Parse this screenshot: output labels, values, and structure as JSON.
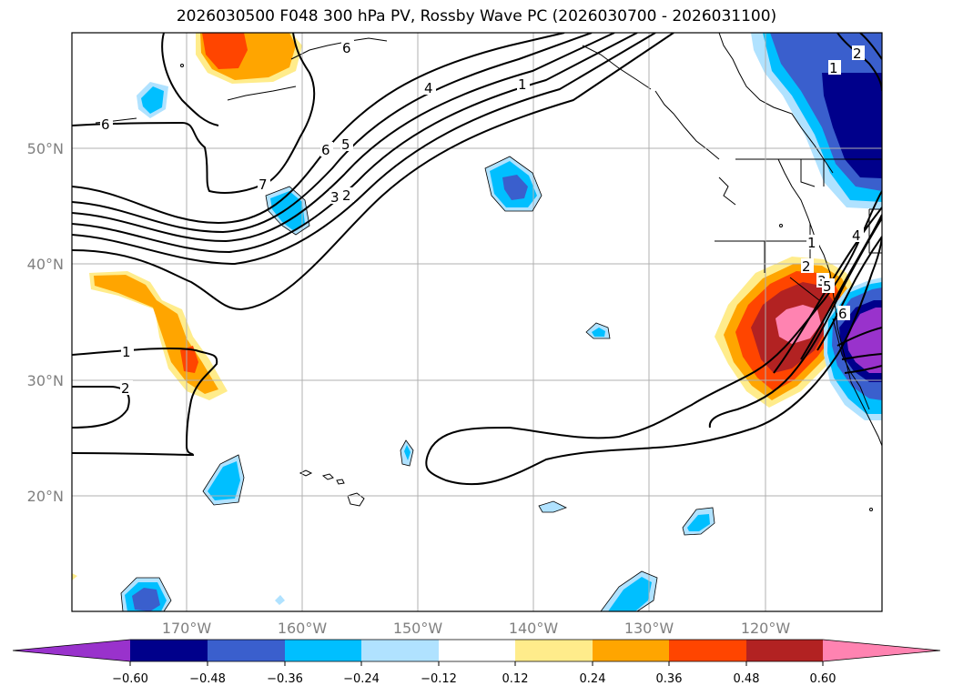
{
  "title": "2026030500 F048 300 hPa PV, Rossby Wave PC (2026030700 - 2026031100)",
  "lat_labels": [
    "50°N",
    "40°N",
    "30°N",
    "20°N"
  ],
  "lon_labels": [
    "170°W",
    "160°W",
    "150°W",
    "140°W",
    "130°W",
    "120°W"
  ],
  "colorbar": {
    "ticks": [
      "−0.60",
      "−0.48",
      "−0.36",
      "−0.24",
      "−0.12",
      "0.12",
      "0.24",
      "0.36",
      "0.48",
      "0.60"
    ],
    "colors": [
      "#9932CC",
      "#00008B",
      "#3A5FCD",
      "#00BFFF",
      "#B0E2FF",
      "#FFFFFF",
      "#FFEC8B",
      "#FFA500",
      "#FF4500",
      "#B22222",
      "#FF83B1"
    ]
  },
  "contour_labels": [
    "6",
    "6",
    "4",
    "1",
    "6",
    "5",
    "7",
    "3",
    "2",
    "1",
    "2",
    "3",
    "4",
    "5",
    "6",
    "1",
    "2",
    "1",
    "2"
  ]
}
